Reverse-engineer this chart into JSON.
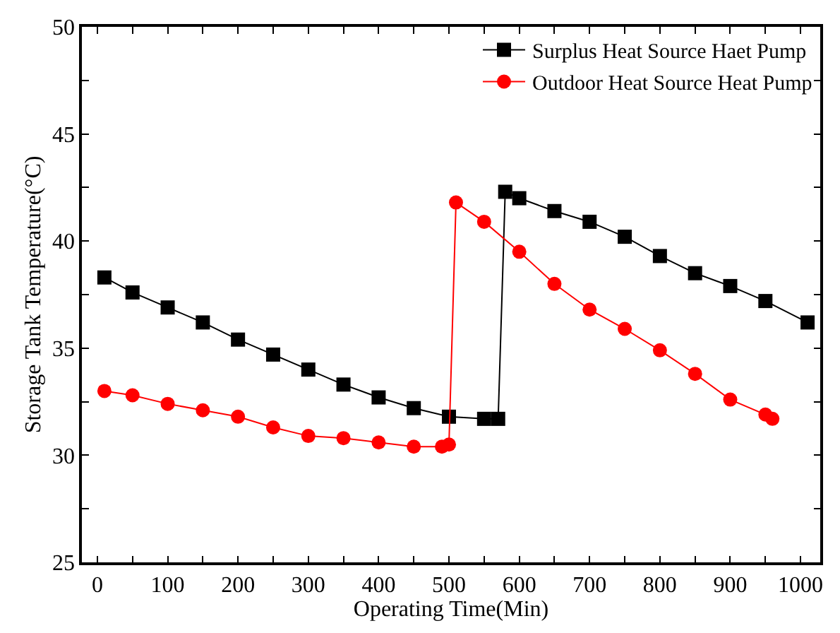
{
  "chart_data": {
    "type": "line",
    "xlabel": "Operating Time(Min)",
    "ylabel": "Storage Tank Temperature(°C)",
    "xlim": [
      -22,
      1028
    ],
    "ylim": [
      25,
      50
    ],
    "xticks": [
      0,
      {
        "value": 50,
        "label": null
      },
      100,
      {
        "value": 150,
        "label": null
      },
      200,
      {
        "value": 250,
        "label": null
      },
      300,
      {
        "value": 350,
        "label": null
      },
      400,
      {
        "value": 450,
        "label": null
      },
      500,
      {
        "value": 550,
        "label": null
      },
      600,
      {
        "value": 650,
        "label": null
      },
      700,
      {
        "value": 750,
        "label": null
      },
      800,
      {
        "value": 850,
        "label": null
      },
      900,
      {
        "value": 950,
        "label": null
      },
      1000
    ],
    "yticks": [
      25,
      {
        "value": 27.5,
        "label": null
      },
      30,
      {
        "value": 32.5,
        "label": null
      },
      35,
      {
        "value": 37.5,
        "label": null
      },
      40,
      {
        "value": 42.5,
        "label": null
      },
      45,
      {
        "value": 47.5,
        "label": null
      },
      50
    ],
    "legend": "top right",
    "series": [
      {
        "name": "Surplus Heat Source Haet Pump",
        "color": "#000000",
        "marker": "square",
        "x": [
          10,
          50,
          100,
          150,
          200,
          250,
          300,
          350,
          400,
          450,
          500,
          550,
          570,
          580,
          600,
          650,
          700,
          750,
          800,
          850,
          900,
          950,
          1010
        ],
        "values": [
          38.3,
          37.6,
          36.9,
          36.2,
          35.4,
          34.7,
          34.0,
          33.3,
          32.7,
          32.2,
          31.8,
          31.7,
          31.7,
          42.3,
          42.0,
          41.4,
          40.9,
          40.2,
          39.3,
          38.5,
          37.9,
          37.2,
          36.2
        ]
      },
      {
        "name": "Outdoor Heat Source Heat Pump",
        "color": "#ff0000",
        "marker": "circle",
        "x": [
          10,
          50,
          100,
          150,
          200,
          250,
          300,
          350,
          400,
          450,
          490,
          500,
          510,
          550,
          600,
          650,
          700,
          750,
          800,
          850,
          900,
          950,
          960
        ],
        "values": [
          33.0,
          32.8,
          32.4,
          32.1,
          31.8,
          31.3,
          30.9,
          30.8,
          30.6,
          30.4,
          30.4,
          30.5,
          41.8,
          40.9,
          39.5,
          38.0,
          36.8,
          35.9,
          34.9,
          33.8,
          32.6,
          31.9,
          31.7
        ]
      }
    ]
  }
}
